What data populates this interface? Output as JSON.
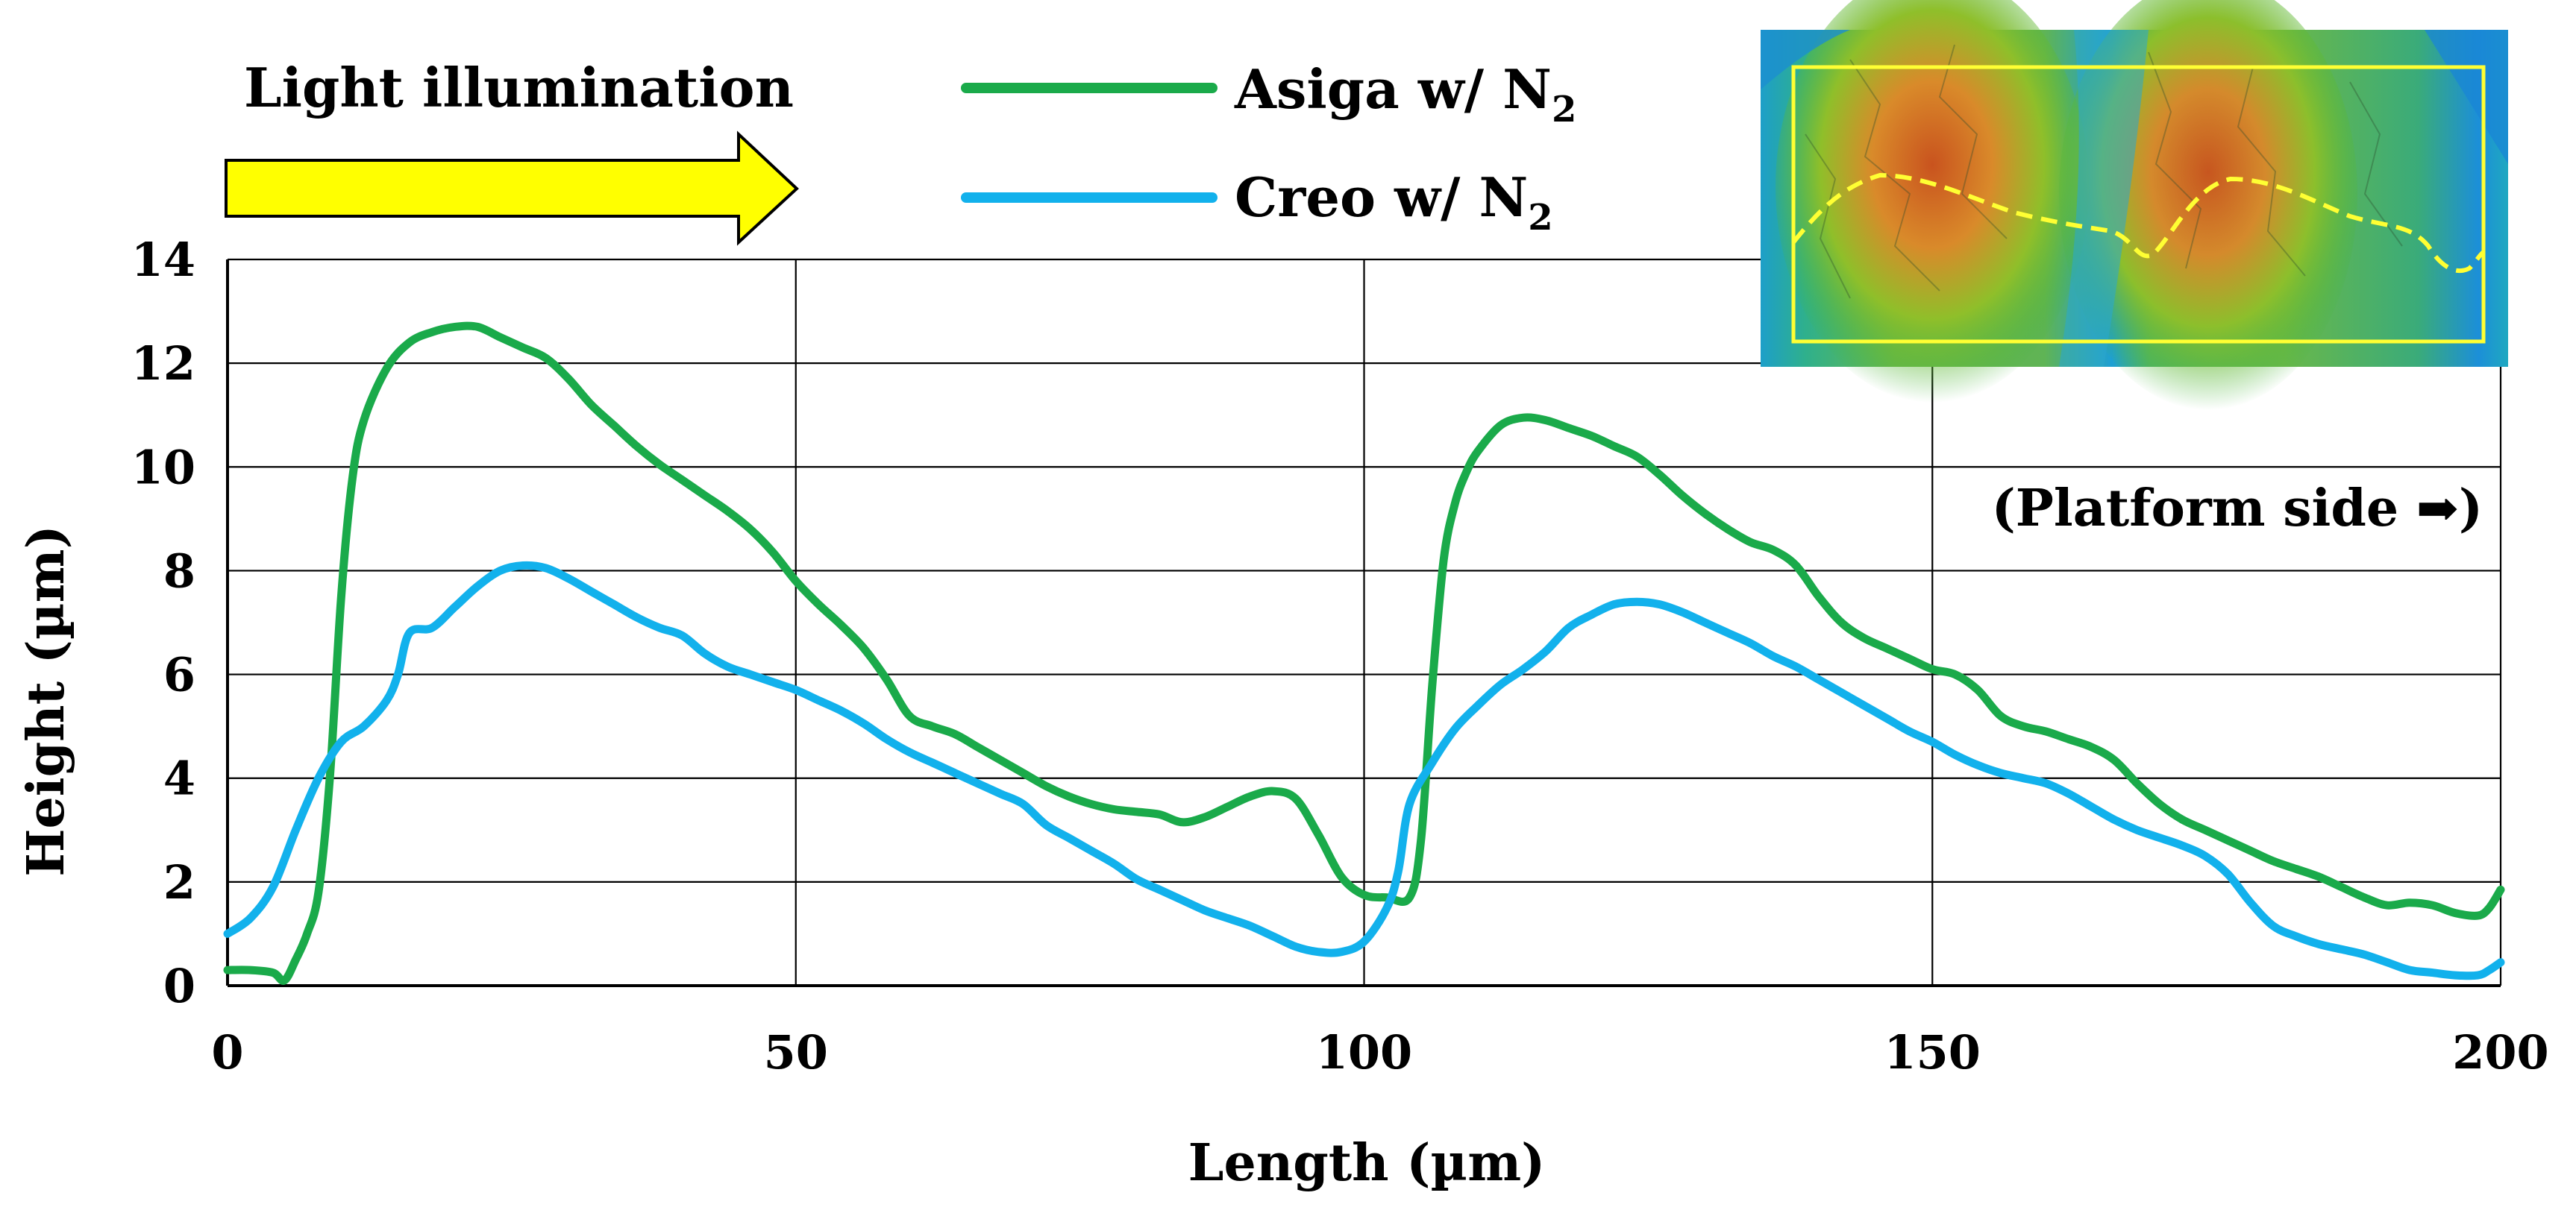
{
  "chart_data": {
    "type": "line",
    "title": "",
    "xlabel": "Length (µm)",
    "ylabel": "Height (µm)",
    "xlim": [
      0,
      200
    ],
    "ylim": [
      0,
      14
    ],
    "xticks": [
      0,
      50,
      100,
      150,
      200
    ],
    "yticks": [
      0,
      2,
      4,
      6,
      8,
      10,
      12,
      14
    ],
    "grid": true,
    "legend_position": "top-center",
    "series": [
      {
        "name": "Asiga w/ N",
        "name_subscript": "2",
        "color": "#1aaa4a",
        "x": [
          0,
          2,
          4,
          5,
          6,
          7,
          8,
          9,
          10,
          11,
          12,
          14,
          16,
          18,
          20,
          22,
          24,
          26,
          28,
          30,
          32,
          34,
          36,
          38,
          40,
          42,
          44,
          46,
          48,
          50,
          52,
          54,
          56,
          58,
          60,
          62,
          64,
          66,
          68,
          70,
          72,
          74,
          76,
          78,
          80,
          82,
          84,
          86,
          88,
          90,
          92,
          94,
          96,
          98,
          100,
          102,
          104,
          105,
          106,
          107,
          108,
          109,
          110,
          112,
          114,
          116,
          118,
          120,
          122,
          124,
          126,
          128,
          130,
          132,
          134,
          136,
          138,
          140,
          142,
          144,
          146,
          148,
          150,
          152,
          154,
          156,
          158,
          160,
          162,
          164,
          166,
          168,
          170,
          172,
          174,
          176,
          178,
          180,
          182,
          184,
          186,
          188,
          190,
          192,
          194,
          196,
          198,
          199,
          200
        ],
        "values": [
          0.3,
          0.3,
          0.25,
          0.1,
          0.5,
          1.0,
          1.8,
          4.0,
          7.5,
          9.8,
          10.9,
          11.9,
          12.4,
          12.6,
          12.7,
          12.7,
          12.5,
          12.3,
          12.1,
          11.7,
          11.2,
          10.8,
          10.4,
          10.05,
          9.75,
          9.45,
          9.15,
          8.8,
          8.35,
          7.8,
          7.35,
          6.95,
          6.5,
          5.9,
          5.2,
          5.0,
          4.85,
          4.6,
          4.35,
          4.1,
          3.85,
          3.65,
          3.5,
          3.4,
          3.35,
          3.3,
          3.15,
          3.25,
          3.45,
          3.65,
          3.75,
          3.6,
          2.9,
          2.1,
          1.75,
          1.7,
          1.7,
          2.8,
          5.8,
          8.2,
          9.3,
          9.9,
          10.3,
          10.8,
          10.95,
          10.9,
          10.75,
          10.6,
          10.4,
          10.2,
          9.85,
          9.45,
          9.1,
          8.8,
          8.55,
          8.4,
          8.1,
          7.5,
          7.0,
          6.7,
          6.5,
          6.3,
          6.1,
          6.0,
          5.7,
          5.2,
          5.0,
          4.9,
          4.75,
          4.6,
          4.35,
          3.9,
          3.5,
          3.2,
          3.0,
          2.8,
          2.6,
          2.4,
          2.25,
          2.1,
          1.9,
          1.7,
          1.55,
          1.6,
          1.55,
          1.4,
          1.35,
          1.5,
          1.85
        ]
      },
      {
        "name": "Creo w/ N",
        "name_subscript": "2",
        "color": "#12b1ec",
        "x": [
          0,
          2,
          4,
          6,
          8,
          10,
          12,
          14,
          15,
          16,
          18,
          20,
          22,
          24,
          26,
          28,
          30,
          32,
          34,
          36,
          38,
          40,
          42,
          44,
          46,
          48,
          50,
          52,
          54,
          56,
          58,
          60,
          62,
          64,
          66,
          68,
          70,
          72,
          74,
          76,
          78,
          80,
          82,
          84,
          86,
          88,
          90,
          92,
          94,
          96,
          98,
          100,
          102,
          103,
          104,
          106,
          108,
          110,
          112,
          114,
          116,
          118,
          120,
          122,
          124,
          126,
          128,
          130,
          132,
          134,
          136,
          138,
          140,
          142,
          144,
          146,
          148,
          150,
          152,
          154,
          156,
          158,
          160,
          162,
          164,
          166,
          168,
          170,
          172,
          174,
          176,
          178,
          180,
          182,
          184,
          186,
          188,
          190,
          192,
          194,
          196,
          198,
          199,
          200
        ],
        "values": [
          1.0,
          1.3,
          1.9,
          3.0,
          4.0,
          4.7,
          5.0,
          5.5,
          6.0,
          6.8,
          6.9,
          7.3,
          7.7,
          8.0,
          8.1,
          8.05,
          7.85,
          7.6,
          7.35,
          7.1,
          6.9,
          6.75,
          6.4,
          6.15,
          6.0,
          5.85,
          5.7,
          5.5,
          5.3,
          5.05,
          4.75,
          4.5,
          4.3,
          4.1,
          3.9,
          3.7,
          3.5,
          3.1,
          2.85,
          2.6,
          2.35,
          2.05,
          1.85,
          1.65,
          1.45,
          1.3,
          1.15,
          0.95,
          0.75,
          0.65,
          0.65,
          0.85,
          1.5,
          2.2,
          3.5,
          4.3,
          4.95,
          5.4,
          5.8,
          6.1,
          6.45,
          6.9,
          7.15,
          7.35,
          7.4,
          7.35,
          7.2,
          7.0,
          6.8,
          6.6,
          6.35,
          6.15,
          5.9,
          5.65,
          5.4,
          5.15,
          4.9,
          4.7,
          4.45,
          4.25,
          4.1,
          4.0,
          3.9,
          3.7,
          3.45,
          3.2,
          3.0,
          2.85,
          2.7,
          2.5,
          2.15,
          1.6,
          1.15,
          0.95,
          0.8,
          0.7,
          0.6,
          0.45,
          0.3,
          0.25,
          0.2,
          0.2,
          0.3,
          0.45
        ]
      }
    ],
    "annotations": [
      {
        "text": "Light illumination",
        "arrow": "right",
        "arrow_color": "#ffff00"
      },
      {
        "text": "(Platform side ➡)"
      }
    ]
  },
  "inset": {
    "description_icon": "surface-profile-image-icon",
    "frame_color": "#ffff33"
  }
}
